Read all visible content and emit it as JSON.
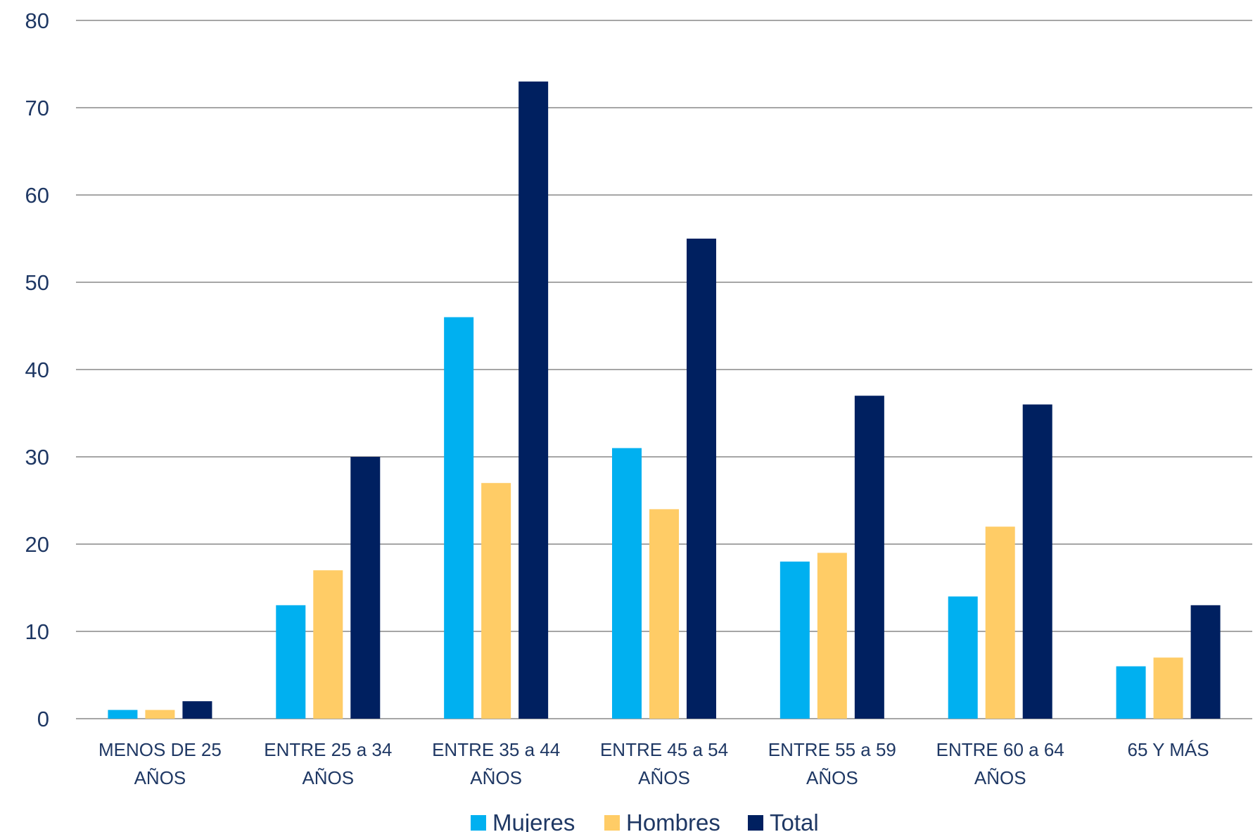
{
  "chart_data": {
    "type": "bar",
    "title": "",
    "xlabel": "",
    "ylabel": "",
    "ylim": [
      0,
      80
    ],
    "yticks": [
      0,
      10,
      20,
      30,
      40,
      50,
      60,
      70,
      80
    ],
    "grid": true,
    "legend_position": "bottom",
    "categories": [
      [
        "MENOS DE 25",
        "AÑOS"
      ],
      [
        "ENTRE 25 a 34",
        "AÑOS"
      ],
      [
        "ENTRE 35 a 44",
        "AÑOS"
      ],
      [
        "ENTRE 45 a 54",
        "AÑOS"
      ],
      [
        "ENTRE 55 a 59",
        "AÑOS"
      ],
      [
        "ENTRE 60 a 64",
        "AÑOS"
      ],
      [
        "65 Y MÁS"
      ]
    ],
    "series": [
      {
        "name": "Mujeres",
        "color": "#00b0f0",
        "values": [
          1,
          13,
          46,
          31,
          18,
          14,
          6
        ]
      },
      {
        "name": "Hombres",
        "color": "#ffcc66",
        "values": [
          1,
          17,
          27,
          24,
          19,
          22,
          7
        ]
      },
      {
        "name": "Total",
        "color": "#002060",
        "values": [
          2,
          30,
          73,
          55,
          37,
          36,
          13
        ]
      }
    ]
  }
}
